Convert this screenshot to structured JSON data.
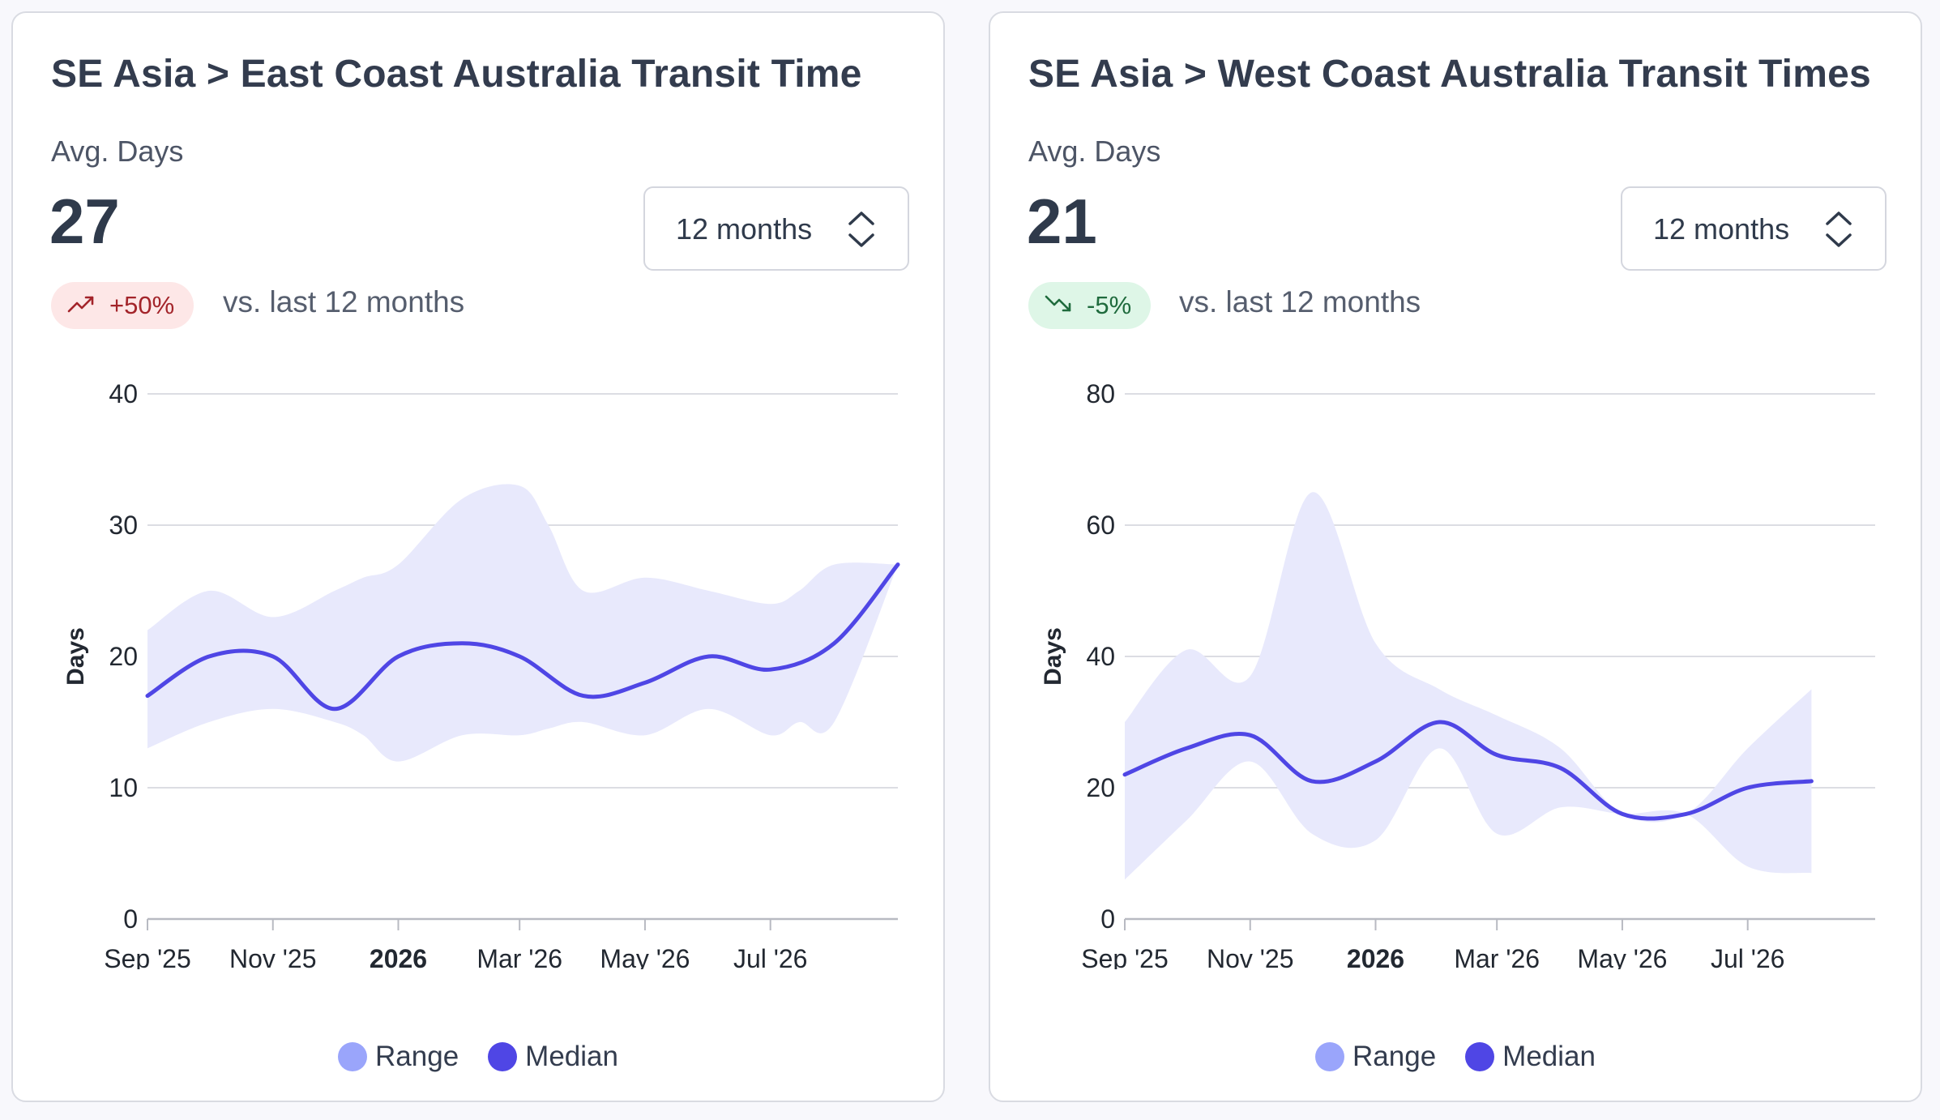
{
  "cards": [
    {
      "title": "SE Asia > East Coast Australia Transit Time",
      "metric_label": "Avg. Days",
      "metric_value": "27",
      "range_select": "12 months",
      "delta": "+50%",
      "delta_direction": "up",
      "delta_icon": "trend-up-icon",
      "compare_label": "vs. last 12 months",
      "legend": {
        "range": "Range",
        "median": "Median"
      }
    },
    {
      "title": "SE Asia > West Coast Australia Transit Times",
      "metric_label": "Avg. Days",
      "metric_value": "21",
      "range_select": "12 months",
      "delta": "-5%",
      "delta_direction": "down",
      "delta_icon": "trend-down-icon",
      "compare_label": "vs. last 12 months",
      "legend": {
        "range": "Range",
        "median": "Median"
      }
    }
  ],
  "colors": {
    "median": "#4f46e5",
    "range_fill": "#e8e9fc",
    "range_legend": "#9aa5fb",
    "grid": "#dcdde3",
    "up": "#a3242a",
    "down": "#1f6b3d"
  },
  "chart_data": [
    {
      "type": "area",
      "ylabel": "Days",
      "ylim": [
        0,
        40
      ],
      "yticks": [
        0,
        10,
        20,
        30,
        40
      ],
      "xlim": [
        "2025-09-01",
        "2026-09-01"
      ],
      "xticks": [
        {
          "date": "2025-09-01",
          "label": "Sep '25",
          "bold": false
        },
        {
          "date": "2025-11-01",
          "label": "Nov '25",
          "bold": false
        },
        {
          "date": "2026-01-01",
          "label": "2026",
          "bold": true
        },
        {
          "date": "2026-03-01",
          "label": "Mar '26",
          "bold": false
        },
        {
          "date": "2026-05-01",
          "label": "May '26",
          "bold": false
        },
        {
          "date": "2026-07-01",
          "label": "Jul '26",
          "bold": false
        }
      ],
      "grid": true,
      "legend_position": "bottom-center",
      "series": [
        {
          "name": "Range",
          "kind": "range",
          "x": [
            "2025-09-01",
            "2025-10-01",
            "2025-11-01",
            "2025-12-01",
            "2025-12-15",
            "2026-01-01",
            "2026-02-01",
            "2026-03-01",
            "2026-03-15",
            "2026-04-01",
            "2026-05-01",
            "2026-06-01",
            "2026-07-01",
            "2026-07-15",
            "2026-08-01",
            "2026-09-01"
          ],
          "low": [
            13,
            15,
            16,
            15,
            14,
            12,
            14,
            14,
            14.5,
            15,
            14,
            16,
            14,
            15,
            15,
            27
          ],
          "high": [
            22,
            25,
            23,
            25,
            26,
            27,
            32,
            33,
            30,
            25,
            26,
            25,
            24,
            25,
            27,
            27
          ]
        },
        {
          "name": "Median",
          "kind": "line",
          "x": [
            "2025-09-01",
            "2025-10-01",
            "2025-11-01",
            "2025-12-01",
            "2026-01-01",
            "2026-02-01",
            "2026-03-01",
            "2026-04-01",
            "2026-05-01",
            "2026-06-01",
            "2026-07-01",
            "2026-08-01",
            "2026-09-01"
          ],
          "values": [
            17,
            20,
            20,
            16,
            20,
            21,
            20,
            17,
            18,
            20,
            19,
            21,
            27
          ]
        }
      ]
    },
    {
      "type": "area",
      "ylabel": "Days",
      "ylim": [
        0,
        80
      ],
      "yticks": [
        0,
        20,
        40,
        60,
        80
      ],
      "xlim": [
        "2025-09-01",
        "2026-09-01"
      ],
      "xticks": [
        {
          "date": "2025-09-01",
          "label": "Sep '25",
          "bold": false
        },
        {
          "date": "2025-11-01",
          "label": "Nov '25",
          "bold": false
        },
        {
          "date": "2026-01-01",
          "label": "2026",
          "bold": true
        },
        {
          "date": "2026-03-01",
          "label": "Mar '26",
          "bold": false
        },
        {
          "date": "2026-05-01",
          "label": "May '26",
          "bold": false
        },
        {
          "date": "2026-07-01",
          "label": "Jul '26",
          "bold": false
        }
      ],
      "grid": true,
      "legend_position": "bottom-center",
      "series": [
        {
          "name": "Range",
          "kind": "range",
          "x": [
            "2025-09-01",
            "2025-10-01",
            "2025-11-01",
            "2025-12-01",
            "2026-01-01",
            "2026-02-01",
            "2026-03-01",
            "2026-04-01",
            "2026-05-01",
            "2026-06-01",
            "2026-07-01",
            "2026-08-01"
          ],
          "low": [
            6,
            15,
            24,
            13,
            12,
            26,
            13,
            17,
            16,
            16,
            8,
            7
          ],
          "high": [
            30,
            41,
            37,
            65,
            42,
            35,
            31,
            26,
            16,
            16,
            26,
            35
          ]
        },
        {
          "name": "Median",
          "kind": "line",
          "x": [
            "2025-09-01",
            "2025-10-01",
            "2025-11-01",
            "2025-12-01",
            "2026-01-01",
            "2026-02-01",
            "2026-03-01",
            "2026-04-01",
            "2026-05-01",
            "2026-06-01",
            "2026-07-01",
            "2026-08-01"
          ],
          "values": [
            22,
            26,
            28,
            21,
            24,
            30,
            25,
            23,
            16,
            16,
            20,
            21
          ]
        }
      ]
    }
  ]
}
